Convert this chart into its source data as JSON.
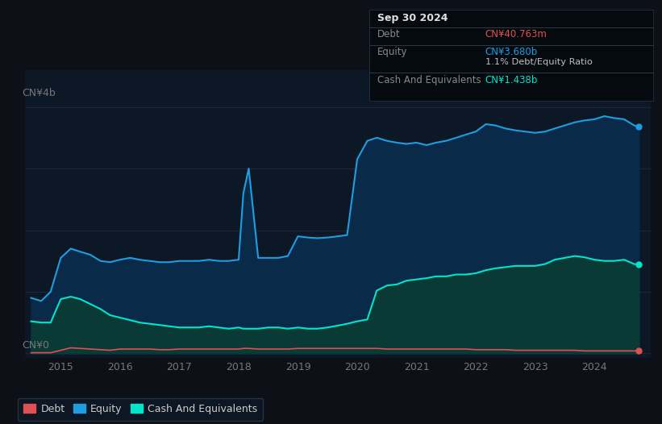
{
  "background_color": "#0d1117",
  "plot_bg_color": "#0d1827",
  "equity_line_color": "#1e9de0",
  "cash_line_color": "#00e5cc",
  "debt_line_color": "#e05050",
  "equity_fill_color": "#0a2a4a",
  "cash_fill_color": "#0a3a35",
  "gridline_color": "#1a2a3a",
  "tick_color": "#777777",
  "tooltip_bg": "#050a0f",
  "tooltip_border": "#2a3a4a",
  "tooltip_date": "Sep 30 2024",
  "tooltip_debt_label": "Debt",
  "tooltip_debt_value": "CN¥40.763m",
  "tooltip_debt_color": "#e05050",
  "tooltip_equity_label": "Equity",
  "tooltip_equity_value": "CN¥3.680b",
  "tooltip_equity_color": "#1e9de0",
  "tooltip_ratio": "1.1% Debt/Equity Ratio",
  "tooltip_ratio_bold": "1.1%",
  "tooltip_cash_label": "Cash And Equivalents",
  "tooltip_cash_value": "CN¥1.438b",
  "tooltip_cash_color": "#00e5cc",
  "legend_labels": [
    "Debt",
    "Equity",
    "Cash And Equivalents"
  ],
  "legend_colors": [
    "#e05050",
    "#1e9de0",
    "#00e5cc"
  ],
  "xlim": [
    2014.4,
    2024.95
  ],
  "ylim": [
    -0.08,
    4.6
  ],
  "ylabel_4b": "CN¥4b",
  "ylabel_0": "CN¥0",
  "years": [
    2014.5,
    2014.67,
    2014.83,
    2015.0,
    2015.17,
    2015.33,
    2015.5,
    2015.67,
    2015.83,
    2016.0,
    2016.17,
    2016.33,
    2016.5,
    2016.67,
    2016.83,
    2017.0,
    2017.17,
    2017.33,
    2017.5,
    2017.67,
    2017.83,
    2018.0,
    2018.08,
    2018.17,
    2018.33,
    2018.5,
    2018.67,
    2018.83,
    2019.0,
    2019.17,
    2019.33,
    2019.5,
    2019.67,
    2019.83,
    2020.0,
    2020.17,
    2020.33,
    2020.5,
    2020.67,
    2020.83,
    2021.0,
    2021.17,
    2021.33,
    2021.5,
    2021.67,
    2021.83,
    2022.0,
    2022.17,
    2022.33,
    2022.5,
    2022.67,
    2022.83,
    2023.0,
    2023.17,
    2023.33,
    2023.5,
    2023.67,
    2023.83,
    2024.0,
    2024.17,
    2024.33,
    2024.5,
    2024.67,
    2024.75
  ],
  "equity": [
    0.9,
    0.85,
    1.0,
    1.55,
    1.7,
    1.65,
    1.6,
    1.5,
    1.48,
    1.52,
    1.55,
    1.52,
    1.5,
    1.48,
    1.48,
    1.5,
    1.5,
    1.5,
    1.52,
    1.5,
    1.5,
    1.52,
    2.6,
    3.0,
    1.55,
    1.55,
    1.55,
    1.58,
    1.9,
    1.88,
    1.87,
    1.88,
    1.9,
    1.92,
    3.15,
    3.45,
    3.5,
    3.45,
    3.42,
    3.4,
    3.42,
    3.38,
    3.42,
    3.45,
    3.5,
    3.55,
    3.6,
    3.72,
    3.7,
    3.65,
    3.62,
    3.6,
    3.58,
    3.6,
    3.65,
    3.7,
    3.75,
    3.78,
    3.8,
    3.85,
    3.82,
    3.8,
    3.7,
    3.68
  ],
  "cash": [
    0.52,
    0.5,
    0.5,
    0.88,
    0.92,
    0.88,
    0.8,
    0.72,
    0.62,
    0.58,
    0.54,
    0.5,
    0.48,
    0.46,
    0.44,
    0.42,
    0.42,
    0.42,
    0.44,
    0.42,
    0.4,
    0.42,
    0.4,
    0.4,
    0.4,
    0.42,
    0.42,
    0.4,
    0.42,
    0.4,
    0.4,
    0.42,
    0.45,
    0.48,
    0.52,
    0.55,
    1.02,
    1.1,
    1.12,
    1.18,
    1.2,
    1.22,
    1.25,
    1.25,
    1.28,
    1.28,
    1.3,
    1.35,
    1.38,
    1.4,
    1.42,
    1.42,
    1.42,
    1.45,
    1.52,
    1.55,
    1.58,
    1.56,
    1.52,
    1.5,
    1.5,
    1.52,
    1.45,
    1.44
  ],
  "debt": [
    0.01,
    0.01,
    0.01,
    0.05,
    0.09,
    0.08,
    0.07,
    0.06,
    0.05,
    0.07,
    0.07,
    0.07,
    0.07,
    0.06,
    0.06,
    0.07,
    0.07,
    0.07,
    0.07,
    0.07,
    0.07,
    0.07,
    0.08,
    0.08,
    0.07,
    0.07,
    0.07,
    0.07,
    0.08,
    0.08,
    0.08,
    0.08,
    0.08,
    0.08,
    0.08,
    0.08,
    0.08,
    0.07,
    0.07,
    0.07,
    0.07,
    0.07,
    0.07,
    0.07,
    0.07,
    0.07,
    0.06,
    0.06,
    0.06,
    0.06,
    0.05,
    0.05,
    0.05,
    0.05,
    0.05,
    0.05,
    0.05,
    0.04,
    0.04,
    0.04,
    0.04,
    0.04,
    0.04,
    0.04
  ]
}
